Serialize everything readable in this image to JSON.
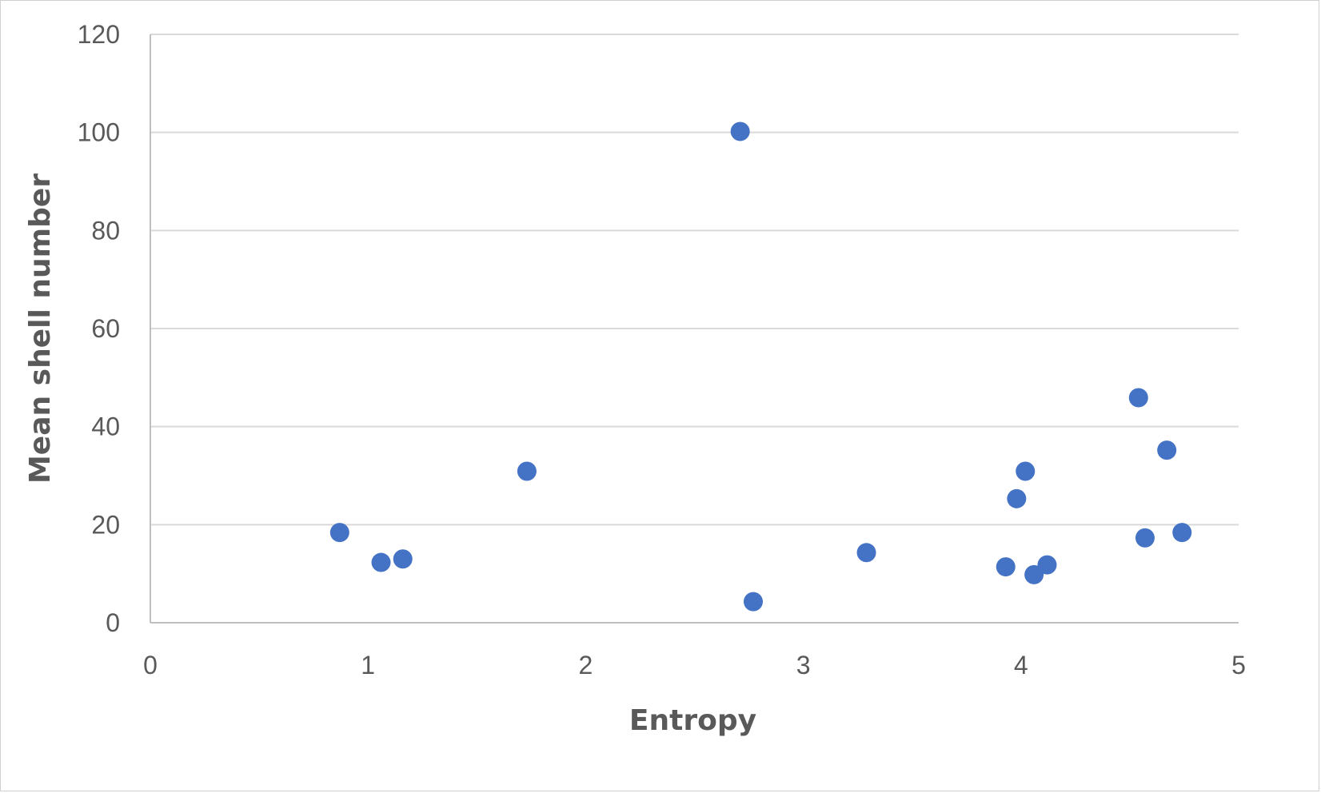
{
  "chart_data": {
    "type": "scatter",
    "title": "",
    "xlabel": "Entropy",
    "ylabel": "Mean shell number",
    "xlim": [
      0,
      5
    ],
    "ylim": [
      0,
      120
    ],
    "x_ticks": [
      0,
      1,
      2,
      3,
      4,
      5
    ],
    "y_ticks": [
      0,
      20,
      40,
      60,
      80,
      100,
      120
    ],
    "grid": "horizontal",
    "legend": "none",
    "series": [
      {
        "color": "#4472c4",
        "points": [
          {
            "x": 0.87,
            "y": 18.4
          },
          {
            "x": 1.06,
            "y": 12.3
          },
          {
            "x": 1.16,
            "y": 13.0
          },
          {
            "x": 1.73,
            "y": 30.9
          },
          {
            "x": 2.71,
            "y": 100.2
          },
          {
            "x": 2.77,
            "y": 4.3
          },
          {
            "x": 3.29,
            "y": 14.3
          },
          {
            "x": 3.93,
            "y": 11.4
          },
          {
            "x": 3.98,
            "y": 25.3
          },
          {
            "x": 4.02,
            "y": 30.9
          },
          {
            "x": 4.06,
            "y": 9.8
          },
          {
            "x": 4.12,
            "y": 11.8
          },
          {
            "x": 4.54,
            "y": 45.9
          },
          {
            "x": 4.57,
            "y": 17.3
          },
          {
            "x": 4.67,
            "y": 35.2
          },
          {
            "x": 4.74,
            "y": 18.4
          }
        ]
      }
    ]
  }
}
